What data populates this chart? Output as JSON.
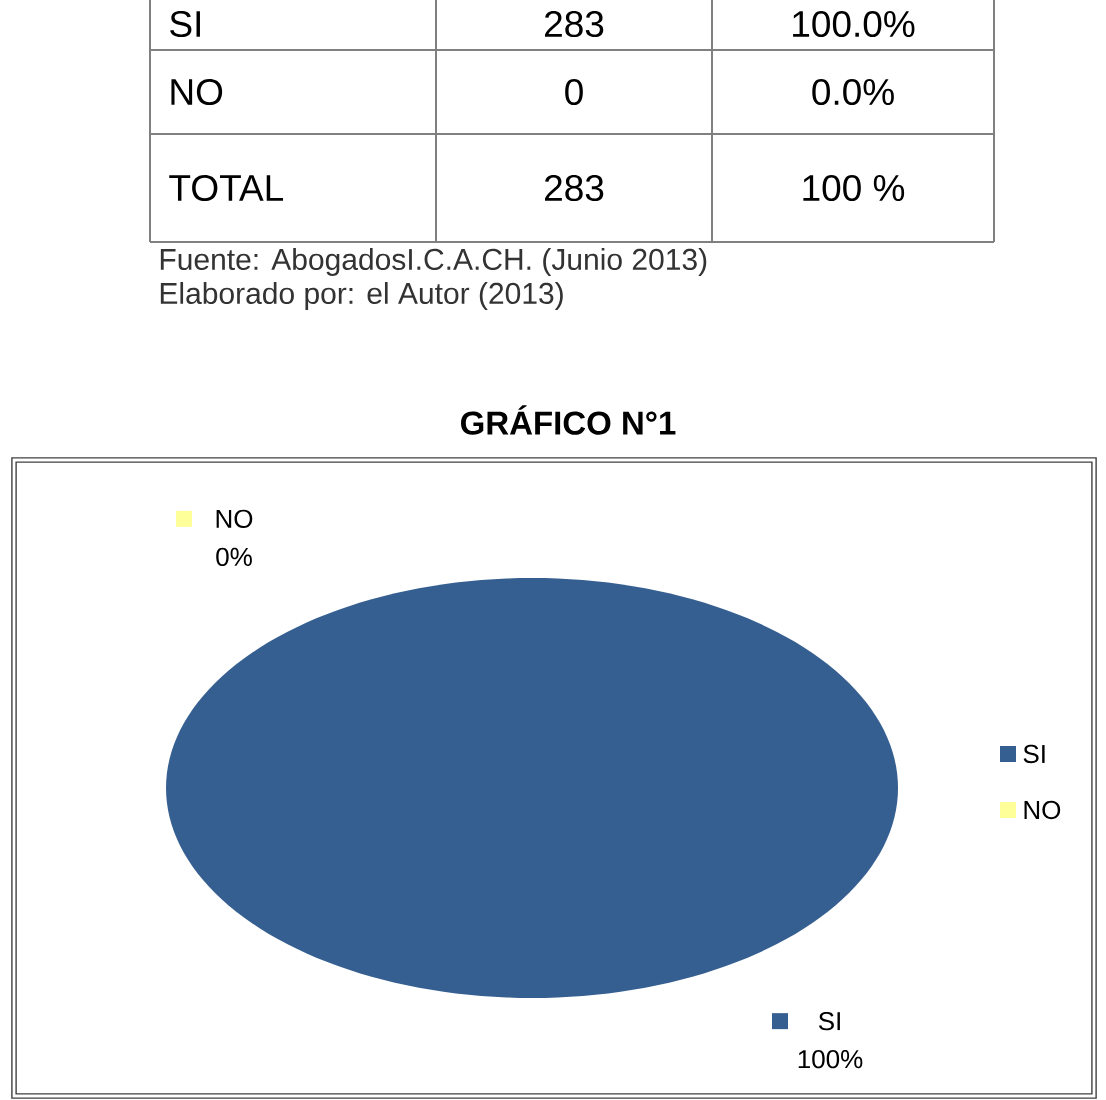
{
  "chart_data": [
    {
      "type": "other",
      "annotations": [
        "SI",
        "283",
        "100.0%",
        "NO",
        "0",
        "0.0%",
        "TOTAL",
        "283",
        "100 %",
        "Fuente: AbogadosI.C.A.CH. (Junio 2013)",
        "Elaborado por: el Autor (2013)"
      ]
    },
    {
      "type": "pie",
      "title": "GRÁFICO N°1",
      "categories": [
        "SI",
        "NO"
      ],
      "values": [
        100,
        0
      ],
      "value_labels": [
        "100%",
        "0%"
      ],
      "colors": [
        "#365f91",
        "#ffff99"
      ],
      "legend": "right"
    }
  ]
}
